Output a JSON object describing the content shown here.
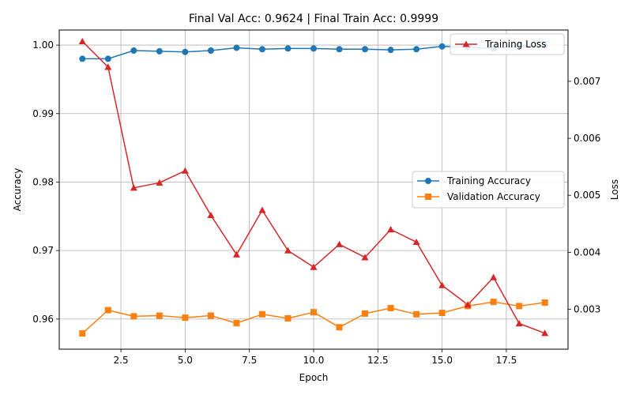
{
  "chart_data": {
    "type": "line",
    "title": "Final Val Acc: 0.9624 | Final Train Acc: 0.9999",
    "xlabel": "Epoch",
    "ylabel_left": "Accuracy",
    "ylabel_right": "Loss",
    "grid": true,
    "xlim": [
      0.1,
      19.9
    ],
    "ylim_left": [
      0.9556,
      1.0022
    ],
    "ylim_right": [
      0.0023,
      0.0079
    ],
    "x_ticks": [
      2.5,
      5.0,
      7.5,
      10.0,
      12.5,
      15.0,
      17.5
    ],
    "x_tick_labels": [
      "2.5",
      "5.0",
      "7.5",
      "10.0",
      "12.5",
      "15.0",
      "17.5"
    ],
    "y_left_ticks": [
      0.96,
      0.97,
      0.98,
      0.99,
      1.0
    ],
    "y_left_tick_labels": [
      "0.96",
      "0.97",
      "0.98",
      "0.99",
      "1.00"
    ],
    "y_right_ticks": [
      0.003,
      0.004,
      0.005,
      0.006,
      0.007
    ],
    "y_right_tick_labels": [
      "0.003",
      "0.004",
      "0.005",
      "0.006",
      "0.007"
    ],
    "x": [
      1,
      2,
      3,
      4,
      5,
      6,
      7,
      8,
      9,
      10,
      11,
      12,
      13,
      14,
      15,
      16,
      17,
      18,
      19
    ],
    "series": [
      {
        "name": "Training Accuracy",
        "axis": "left",
        "color": "#1f77b4",
        "marker": "circle",
        "values": [
          0.998,
          0.998,
          0.9992,
          0.9991,
          0.999,
          0.9992,
          0.9996,
          0.9994,
          0.9995,
          0.9995,
          0.9994,
          0.9994,
          0.9993,
          0.9994,
          0.9998,
          0.9997,
          0.9995,
          0.9999,
          0.9999
        ]
      },
      {
        "name": "Validation Accuracy",
        "axis": "left",
        "color": "#ff7f0e",
        "marker": "square",
        "values": [
          0.9579,
          0.9613,
          0.9604,
          0.9605,
          0.9602,
          0.9605,
          0.9594,
          0.9607,
          0.9601,
          0.961,
          0.9588,
          0.9608,
          0.9616,
          0.9607,
          0.9609,
          0.9619,
          0.9625,
          0.9619,
          0.9624
        ]
      },
      {
        "name": "Training Loss",
        "axis": "right",
        "color": "#d62728",
        "marker": "triangle",
        "values": [
          0.0077,
          0.00725,
          0.00513,
          0.00522,
          0.00543,
          0.00465,
          0.00396,
          0.00474,
          0.00403,
          0.00374,
          0.00414,
          0.00391,
          0.0044,
          0.00418,
          0.00342,
          0.00308,
          0.00356,
          0.00275,
          0.00258
        ]
      }
    ],
    "legends": [
      {
        "placement": "upper-right",
        "entries": [
          "Training Loss"
        ]
      },
      {
        "placement": "center-right",
        "entries": [
          "Training Accuracy",
          "Validation Accuracy"
        ]
      }
    ]
  }
}
